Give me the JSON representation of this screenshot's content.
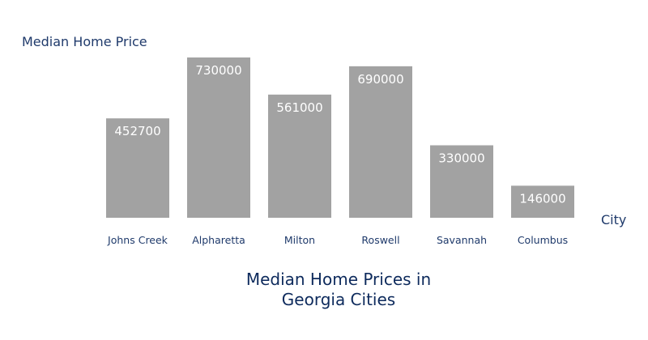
{
  "chart_data": {
    "type": "bar",
    "title_lines": [
      "Median Home Prices in",
      "Georgia Cities"
    ],
    "ylabel": "Median Home Price",
    "xlabel": "City",
    "categories": [
      "Johns Creek",
      "Alpharetta",
      "Milton",
      "Roswell",
      "Savannah",
      "Columbus"
    ],
    "values": [
      452700,
      730000,
      561000,
      690000,
      330000,
      146000
    ],
    "ylim": [
      0,
      730000
    ],
    "grid": false,
    "legend": "none",
    "data_labels": "inside-top",
    "colors": {
      "bar": "#a2a2a2",
      "label": "#ffffff",
      "axis_text": "#1f3a6b",
      "title": "#0d2a5c"
    }
  }
}
